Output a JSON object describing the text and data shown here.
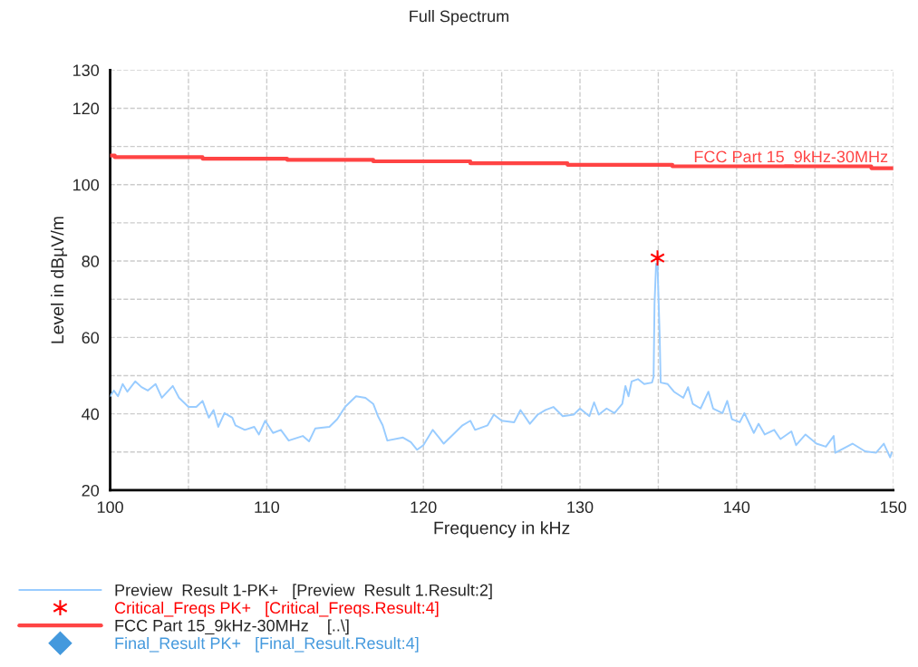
{
  "chart_data": {
    "type": "line",
    "title": "Full Spectrum",
    "xlabel": "Frequency in kHz",
    "ylabel": "Level in dBµV/m",
    "xlim": [
      100,
      150
    ],
    "ylim": [
      20,
      130
    ],
    "xticks": [
      100,
      {
        "value": 105,
        "label": null
      },
      110,
      {
        "value": 115,
        "label": null
      },
      120,
      {
        "value": 125,
        "label": null
      },
      130,
      {
        "value": 135,
        "label": null
      },
      140,
      {
        "value": 145,
        "label": null
      },
      150
    ],
    "yticks": [
      20,
      {
        "value": 30,
        "label": null
      },
      40,
      {
        "value": 50,
        "label": null
      },
      60,
      {
        "value": 70,
        "label": null
      },
      80,
      {
        "value": 90,
        "label": null
      },
      100,
      {
        "value": 110,
        "label": null
      },
      120,
      130
    ],
    "grid": true,
    "legend": "bottom left",
    "annotations": [
      {
        "text": "FCC Part 15_9kHz-30MHz",
        "x": 150,
        "y": 104.3
      }
    ],
    "series": [
      {
        "name": "Preview  Result 1-PK+   [Preview  Result 1.Result:2]",
        "color": "#99ccff",
        "marker": "none",
        "x": [
          100,
          100.23,
          100.5,
          100.8,
          101.1,
          101.6,
          102.0,
          102.4,
          102.9,
          103.3,
          104.0,
          104.4,
          105.0,
          105.5,
          105.9,
          106.3,
          106.6,
          106.9,
          107.3,
          107.8,
          108.0,
          108.6,
          109.2,
          109.5,
          109.9,
          110.4,
          110.9,
          111.4,
          112.3,
          112.7,
          113.1,
          114.0,
          114.5,
          115.0,
          115.7,
          116.3,
          116.8,
          117.1,
          117.4,
          117.7,
          118.7,
          119.2,
          119.6,
          120.0,
          120.6,
          121.0,
          121.3,
          122.0,
          122.5,
          123.0,
          123.3,
          124.1,
          124.5,
          125.0,
          125.8,
          126.2,
          126.8,
          127.3,
          127.8,
          128.3,
          128.9,
          129.6,
          130.0,
          130.6,
          130.9,
          131.2,
          131.7,
          132.2,
          132.7,
          132.9,
          133.1,
          133.3,
          133.7,
          134.1,
          134.6,
          134.7,
          134.76,
          134.86,
          134.95,
          135.09,
          135.15,
          135.6,
          136.0,
          136.6,
          136.9,
          137.2,
          137.7,
          138.2,
          138.5,
          139.1,
          139.4,
          139.7,
          140.2,
          140.5,
          141.1,
          141.4,
          141.8,
          142.4,
          142.8,
          143.5,
          143.8,
          144.4,
          145.1,
          145.7,
          146.2,
          146.3,
          147.4,
          148.2,
          148.9,
          149.4,
          149.8,
          149.9
        ],
        "values": [
          44.6,
          46.1,
          44.6,
          47.8,
          45.8,
          48.5,
          47.0,
          46.1,
          47.8,
          44.2,
          47.3,
          44.2,
          41.8,
          41.8,
          43.4,
          39.0,
          41.0,
          36.6,
          40.2,
          39.0,
          37.0,
          35.8,
          36.6,
          34.6,
          38.2,
          35.0,
          35.8,
          33.0,
          34.2,
          32.8,
          36.2,
          36.6,
          38.6,
          41.8,
          44.6,
          44.2,
          42.6,
          39.4,
          37.0,
          33.0,
          33.8,
          32.6,
          30.6,
          31.8,
          35.8,
          33.8,
          32.2,
          35.0,
          37.0,
          38.2,
          35.8,
          37.0,
          39.8,
          38.2,
          37.8,
          41.0,
          37.4,
          39.8,
          41.0,
          41.8,
          39.4,
          39.8,
          41.4,
          39.4,
          43.0,
          39.8,
          41.4,
          40.2,
          42.6,
          47.3,
          44.6,
          48.5,
          49.1,
          47.8,
          48.2,
          49.7,
          68.9,
          79.3,
          78.9,
          60.1,
          48.2,
          47.8,
          45.8,
          44.2,
          47.0,
          42.6,
          41.4,
          45.8,
          41.4,
          40.2,
          43.4,
          38.6,
          37.8,
          40.2,
          35.0,
          37.4,
          34.6,
          35.8,
          33.4,
          35.4,
          31.8,
          34.6,
          32.2,
          31.4,
          34.2,
          29.8,
          32.2,
          30.2,
          29.8,
          32.2,
          28.6,
          29.8
        ]
      },
      {
        "name": "Critical_Freqs PK+   [Critical_Freqs.Result:4]",
        "type": "scatter",
        "color": "#ff0000",
        "marker": "cross",
        "x": [
          134.95
        ],
        "values": [
          80.8
        ]
      },
      {
        "name": "FCC Part 15_9kHz-30MHz    [..\\]",
        "type": "step",
        "color": "#ff4444",
        "marker": "none",
        "x": [
          100,
          100.3,
          105.9,
          111.3,
          116.8,
          123.0,
          129.2,
          135.9,
          148.6,
          150
        ],
        "values": [
          107.6,
          107.2,
          106.8,
          106.5,
          106.1,
          105.6,
          105.2,
          104.8,
          104.3,
          104.3
        ]
      },
      {
        "name": "Final_Result PK+   [Final_Result.Result:4]",
        "type": "scatter",
        "color": "#4499dd",
        "marker": "diamond"
      }
    ]
  }
}
